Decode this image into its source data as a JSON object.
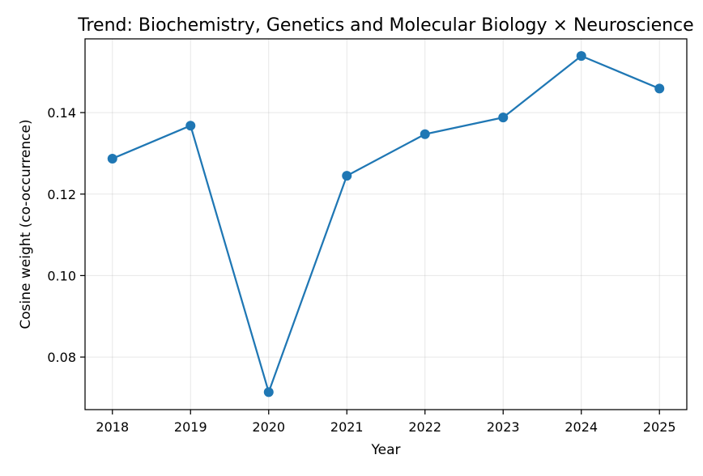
{
  "chart_data": {
    "type": "line",
    "title": "Trend: Biochemistry, Genetics and Molecular Biology × Neuroscience",
    "xlabel": "Year",
    "ylabel": "Cosine weight (co-occurrence)",
    "x": [
      2018,
      2019,
      2020,
      2021,
      2022,
      2023,
      2024,
      2025
    ],
    "x_tick_labels": [
      "2018",
      "2019",
      "2020",
      "2021",
      "2022",
      "2023",
      "2024",
      "2025"
    ],
    "y_ticks": [
      0.08,
      0.1,
      0.12,
      0.14
    ],
    "y_tick_labels": [
      "0.08",
      "0.10",
      "0.12",
      "0.14"
    ],
    "ylim": [
      0.0671,
      0.1581
    ],
    "xlim": [
      2017.65,
      2025.35
    ],
    "grid": true,
    "series": [
      {
        "values": [
          0.1287,
          0.1368,
          0.0714,
          0.1245,
          0.1347,
          0.1388,
          0.1539,
          0.1459
        ],
        "color": "#1f77b4",
        "marker": "circle"
      }
    ]
  }
}
